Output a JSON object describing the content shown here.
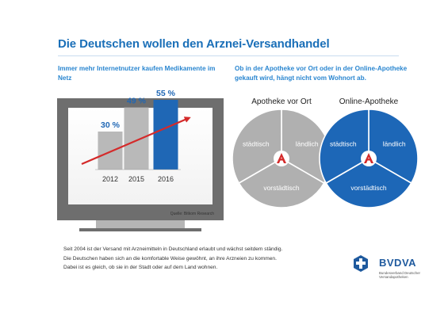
{
  "title": "Die Deutschen wollen den Arznei-Versandhandel",
  "left_heading": "Immer mehr Internetnutzer kaufen Medikamente im Netz",
  "right_heading": "Ob in der Apotheke vor Ort oder in der Online-Apotheke gekauft wird, hängt nicht vom Wohnort ab.",
  "source": "Quelle: Bitkom Research",
  "chart_data": [
    {
      "type": "bar",
      "categories": [
        "2012",
        "2015",
        "2016"
      ],
      "values": [
        30,
        49,
        55
      ],
      "value_labels": [
        "30 %",
        "49 %",
        "55 %"
      ],
      "ylim": [
        0,
        60
      ]
    },
    {
      "type": "pie",
      "title": "Apotheke vor Ort",
      "slices": [
        {
          "label": "städtisch",
          "value": 1
        },
        {
          "label": "ländlich",
          "value": 1
        },
        {
          "label": "vorstädtisch",
          "value": 1
        }
      ]
    },
    {
      "type": "pie",
      "title": "Online-Apotheke",
      "slices": [
        {
          "label": "städtisch",
          "value": 1
        },
        {
          "label": "ländlich",
          "value": 1
        },
        {
          "label": "vorstädtisch",
          "value": 1
        }
      ]
    }
  ],
  "footer": [
    "Seit 2004 ist der Versand mit Arzneimitteln in Deutschland erlaubt und wächst seitdem ständig.",
    "Die Deutschen haben sich an die komfortable Weise gewöhnt, an ihre Arzneien zu kommen.",
    "Dabei ist es gleich, ob sie in der Stadt oder auf dem Land wohnen."
  ],
  "logo": {
    "name": "BVDVA",
    "subtitle": "Bundesverband Deutscher Versandapotheken"
  },
  "colors": {
    "title_blue": "#1a6fb8",
    "heading_blue": "#2a86d0",
    "bar_gray": "#b9b9b9",
    "bar_blue": "#1f67b5",
    "arrow_red": "#d42a2a",
    "pie_gray": "#b0b0b0",
    "pie_blue": "#1d67b7",
    "label_2015": "#1f67b5",
    "label_2016": "#1f67b5",
    "label_2012": "#1f67b5"
  }
}
